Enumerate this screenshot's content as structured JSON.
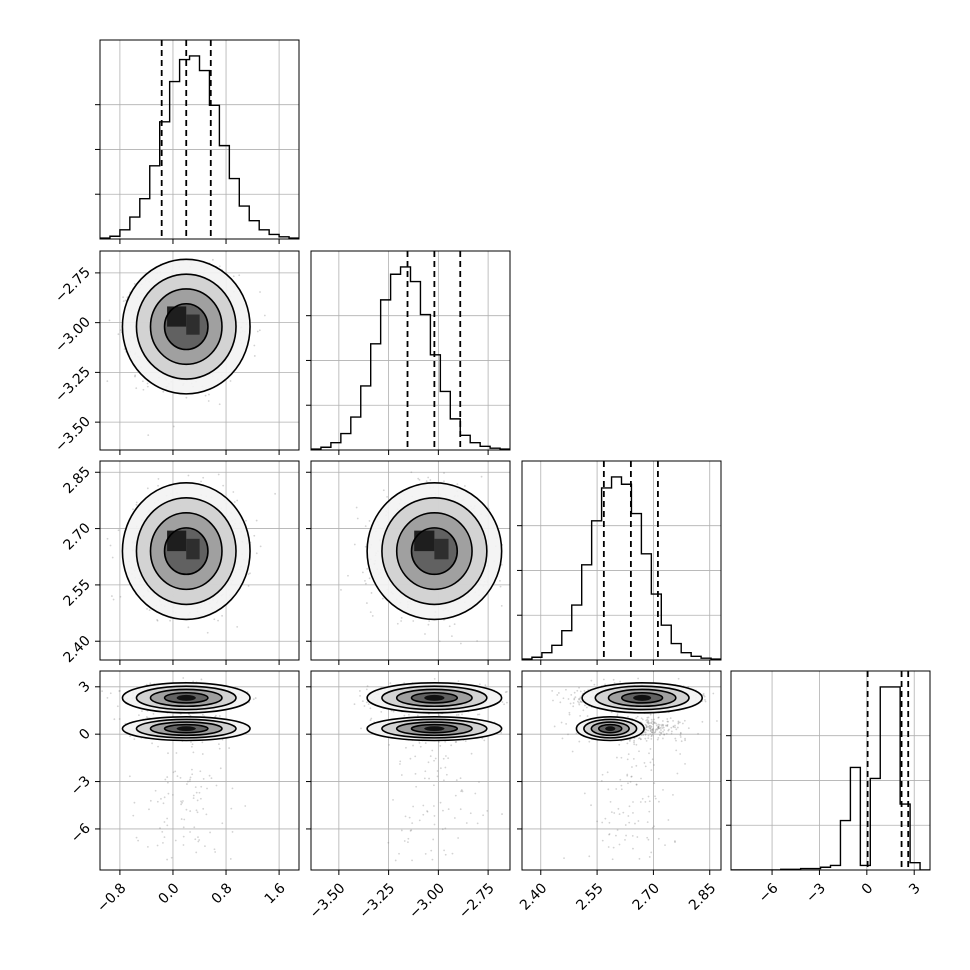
{
  "chart_data": {
    "type": "corner",
    "title": "",
    "parameters": [
      {
        "axis_label": "",
        "range": [
          -1.1,
          1.9
        ],
        "ticks": [
          -0.8,
          0.0,
          0.8,
          1.6
        ],
        "tick_labels": [
          "−0.8",
          "0.0",
          "0.8",
          "1.6"
        ],
        "median": 0.2,
        "q16": -0.17,
        "q84": 0.57,
        "sigma": 0.37,
        "bins": 20
      },
      {
        "axis_label": "",
        "range": [
          -3.64,
          -2.64
        ],
        "ticks": [
          -3.5,
          -3.25,
          -3.0,
          -2.75
        ],
        "tick_labels": [
          "−3.50",
          "−3.25",
          "−3.00",
          "−2.75"
        ],
        "median": -3.02,
        "q16": -3.155,
        "q84": -2.89,
        "sigma": 0.13,
        "bins": 20
      },
      {
        "axis_label": "",
        "range": [
          2.35,
          2.88
        ],
        "ticks": [
          2.4,
          2.55,
          2.7,
          2.85
        ],
        "tick_labels": [
          "2.40",
          "2.55",
          "2.70",
          "2.85"
        ],
        "median": 2.64,
        "q16": 2.568,
        "q84": 2.712,
        "sigma": 0.07,
        "bins": 20
      },
      {
        "axis_label": "",
        "range": [
          -8.6,
          4.0
        ],
        "ticks": [
          -6,
          -3,
          0,
          3
        ],
        "tick_labels": [
          "−6",
          "−3",
          "0",
          "3"
        ],
        "median": 2.2,
        "q16": 0.05,
        "q84": 2.62,
        "bins": 20
      }
    ],
    "histograms": [
      {
        "param": 0,
        "heights": [
          0.5,
          1.5,
          5,
          12,
          22,
          40,
          64,
          86,
          98,
          100,
          92,
          73,
          51,
          33,
          18,
          10,
          5,
          2.5,
          1.2,
          0.5
        ]
      },
      {
        "param": 1,
        "heights": [
          0.5,
          1.5,
          4,
          9,
          18,
          35,
          58,
          82,
          96,
          100,
          92,
          74,
          52,
          32,
          17,
          8,
          4,
          2,
          1,
          0.5
        ]
      },
      {
        "param": 2,
        "heights": [
          0.5,
          1.5,
          4,
          8,
          16,
          30,
          52,
          76,
          94,
          100,
          96,
          80,
          58,
          36,
          19,
          9,
          4,
          2,
          1,
          0.5
        ]
      },
      {
        "param": 3,
        "heights": [
          0,
          0,
          0,
          0,
          0,
          0.4,
          0.4,
          0.8,
          0.8,
          1.5,
          2.5,
          27,
          56,
          2.5,
          50,
          100,
          100,
          36,
          4,
          0
        ]
      }
    ],
    "contour_levels": [
      "0.5-sigma",
      "1-sigma",
      "1.5-sigma",
      "2-sigma"
    ],
    "grid": true
  },
  "style": {
    "line_color": "#000000",
    "grid_color": "#b0b0b0",
    "scatter_color": "#808080",
    "density_color": "#000000"
  }
}
